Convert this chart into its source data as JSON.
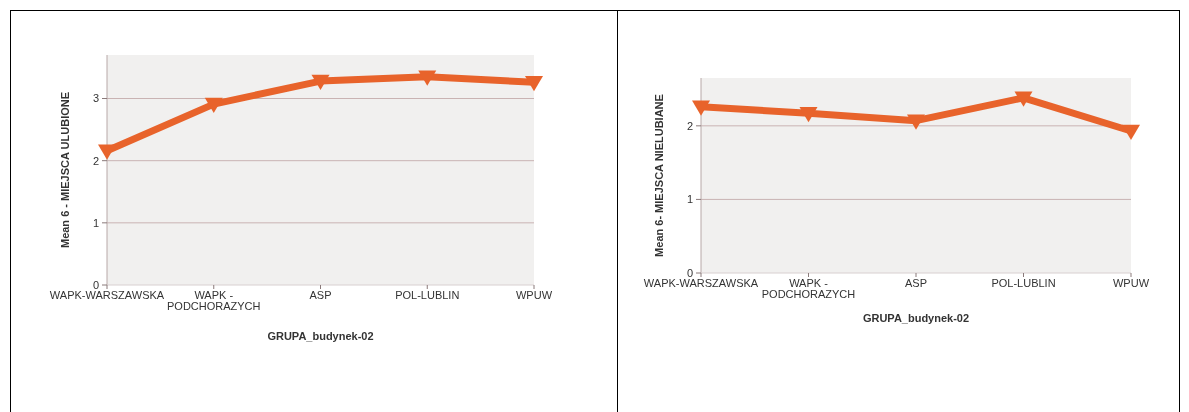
{
  "chart_data": [
    {
      "type": "line",
      "categories": [
        "WAPK-WARSZAWSKA",
        "WAPK - PODCHORAZYCH",
        "ASP",
        "POL-LUBLIN",
        "WPUW"
      ],
      "series": [
        {
          "color": "#e8632b",
          "values": [
            2.16,
            2.91,
            3.28,
            3.35,
            3.26
          ]
        }
      ],
      "ylabel": "Mean 6 - MIEJSCA ULUBIONE",
      "xlabel": "GRUPA_budynek-02",
      "ylim": [
        0,
        3.7
      ],
      "yticks": [
        0,
        1,
        2,
        3
      ],
      "grid": "y",
      "marker": "triangle",
      "line_style": "solid"
    },
    {
      "type": "line",
      "categories": [
        "WAPK-WARSZAWSKA",
        "WAPK - PODCHORAZYCH",
        "ASP",
        "POL-LUBLIN",
        "WPUW"
      ],
      "series": [
        {
          "color": "#e8632b",
          "values": [
            2.26,
            2.17,
            2.07,
            2.38,
            1.93
          ]
        }
      ],
      "ylabel": "Mean 6- MIEJSCA NIELUBIANE",
      "xlabel": "GRUPA_budynek-02",
      "ylim": [
        0,
        2.65
      ],
      "yticks": [
        0,
        1,
        2
      ],
      "grid": "y",
      "marker": "triangle",
      "line_style": "solid"
    }
  ]
}
